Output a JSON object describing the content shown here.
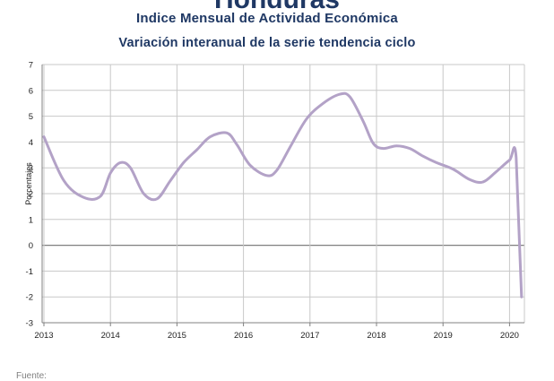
{
  "header": {
    "clipped_title": "Honduras",
    "title": "Indice Mensual de  Actividad Económica",
    "subtitle": "Variación interanual de la serie tendencia ciclo"
  },
  "footer": {
    "source_label": "Fuente:"
  },
  "colors": {
    "line": "#b3a2c7",
    "title": "#1f3864",
    "grid": "#c8c8c8",
    "zero_line": "#808080"
  },
  "chart_data": {
    "type": "line",
    "title": "Indice Mensual de  Actividad Económica",
    "subtitle": "Variación interanual de la serie tendencia ciclo",
    "xlabel": "",
    "ylabel": "Porcentajes",
    "xlim": [
      2013,
      2020.2
    ],
    "ylim": [
      -3,
      7
    ],
    "yticks": [
      -3,
      -2,
      -1,
      0,
      1,
      2,
      3,
      4,
      5,
      6,
      7
    ],
    "xticks": [
      "2013",
      "2014",
      "2015",
      "2016",
      "2017",
      "2018",
      "2019",
      "2020"
    ],
    "grid": true,
    "legend": "none",
    "series": [
      {
        "x": [
          2013.0,
          2013.3,
          2013.6,
          2013.85,
          2014.0,
          2014.15,
          2014.3,
          2014.5,
          2014.7,
          2014.9,
          2015.1,
          2015.3,
          2015.5,
          2015.75,
          2015.9,
          2016.1,
          2016.35,
          2016.5,
          2016.7,
          2016.95,
          2017.2,
          2017.45,
          2017.6,
          2017.8,
          2017.95,
          2018.1,
          2018.3,
          2018.5,
          2018.7,
          2018.9,
          2019.15,
          2019.4,
          2019.6,
          2019.8,
          2020.0,
          2020.1,
          2020.18
        ],
        "values": [
          4.2,
          2.5,
          1.85,
          1.9,
          2.8,
          3.2,
          3.0,
          2.0,
          1.8,
          2.5,
          3.2,
          3.7,
          4.2,
          4.35,
          3.9,
          3.1,
          2.7,
          2.9,
          3.8,
          4.9,
          5.5,
          5.85,
          5.75,
          4.8,
          3.95,
          3.75,
          3.85,
          3.75,
          3.45,
          3.2,
          2.95,
          2.55,
          2.45,
          2.85,
          3.3,
          3.4,
          -2.0
        ]
      }
    ]
  }
}
